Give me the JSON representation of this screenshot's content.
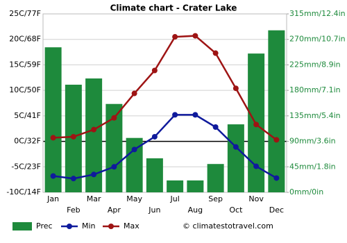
{
  "chart_data": {
    "type": "combo",
    "title": "Climate chart - Crater Lake",
    "categories": [
      "Jan",
      "Feb",
      "Mar",
      "Apr",
      "May",
      "Jun",
      "Jul",
      "Aug",
      "Sep",
      "Oct",
      "Nov",
      "Dec"
    ],
    "series": [
      {
        "name": "Prec",
        "type": "bar",
        "axis": "y2",
        "color": "#1e8a3c",
        "values": [
          256,
          190,
          201,
          156,
          96,
          60,
          21,
          21,
          50,
          120,
          245,
          286
        ]
      },
      {
        "name": "Min",
        "type": "line",
        "color": "#0f1a9c",
        "values": [
          -6.8,
          -7.3,
          -6.5,
          -5,
          -1.6,
          0.9,
          5.2,
          5.2,
          2.8,
          -1.1,
          -4.9,
          -7.2
        ]
      },
      {
        "name": "Max",
        "type": "line",
        "color": "#9e1414",
        "values": [
          0.7,
          0.9,
          2.3,
          4.6,
          9.4,
          13.9,
          20.5,
          20.7,
          17.3,
          10.4,
          3.3,
          0.3
        ]
      }
    ],
    "ylim": [
      -10,
      25
    ],
    "yticks": [
      {
        "value": -10,
        "label": "-10C/14F"
      },
      {
        "value": -5,
        "label": "-5C/23F"
      },
      {
        "value": 0,
        "label": "0C/32F"
      },
      {
        "value": 5,
        "label": "5C/41F"
      },
      {
        "value": 10,
        "label": "10C/50F"
      },
      {
        "value": 15,
        "label": "15C/59F"
      },
      {
        "value": 20,
        "label": "20C/68F"
      },
      {
        "value": 25,
        "label": "25C/77F"
      }
    ],
    "y2lim": [
      0,
      315
    ],
    "y2ticks": [
      {
        "value": 0,
        "label": "0mm/0in"
      },
      {
        "value": 45,
        "label": "45mm/1.8in"
      },
      {
        "value": 90,
        "label": "90mm/3.6in"
      },
      {
        "value": 135,
        "label": "135mm/5.4in"
      },
      {
        "value": 180,
        "label": "180mm/7.1in"
      },
      {
        "value": 225,
        "label": "225mm/8.9in"
      },
      {
        "value": 270,
        "label": "270mm/10.7in"
      },
      {
        "value": 315,
        "label": "315mm/12.4in"
      }
    ],
    "grid": true,
    "legend": "bottom",
    "source": "© climatestotravel.com"
  }
}
